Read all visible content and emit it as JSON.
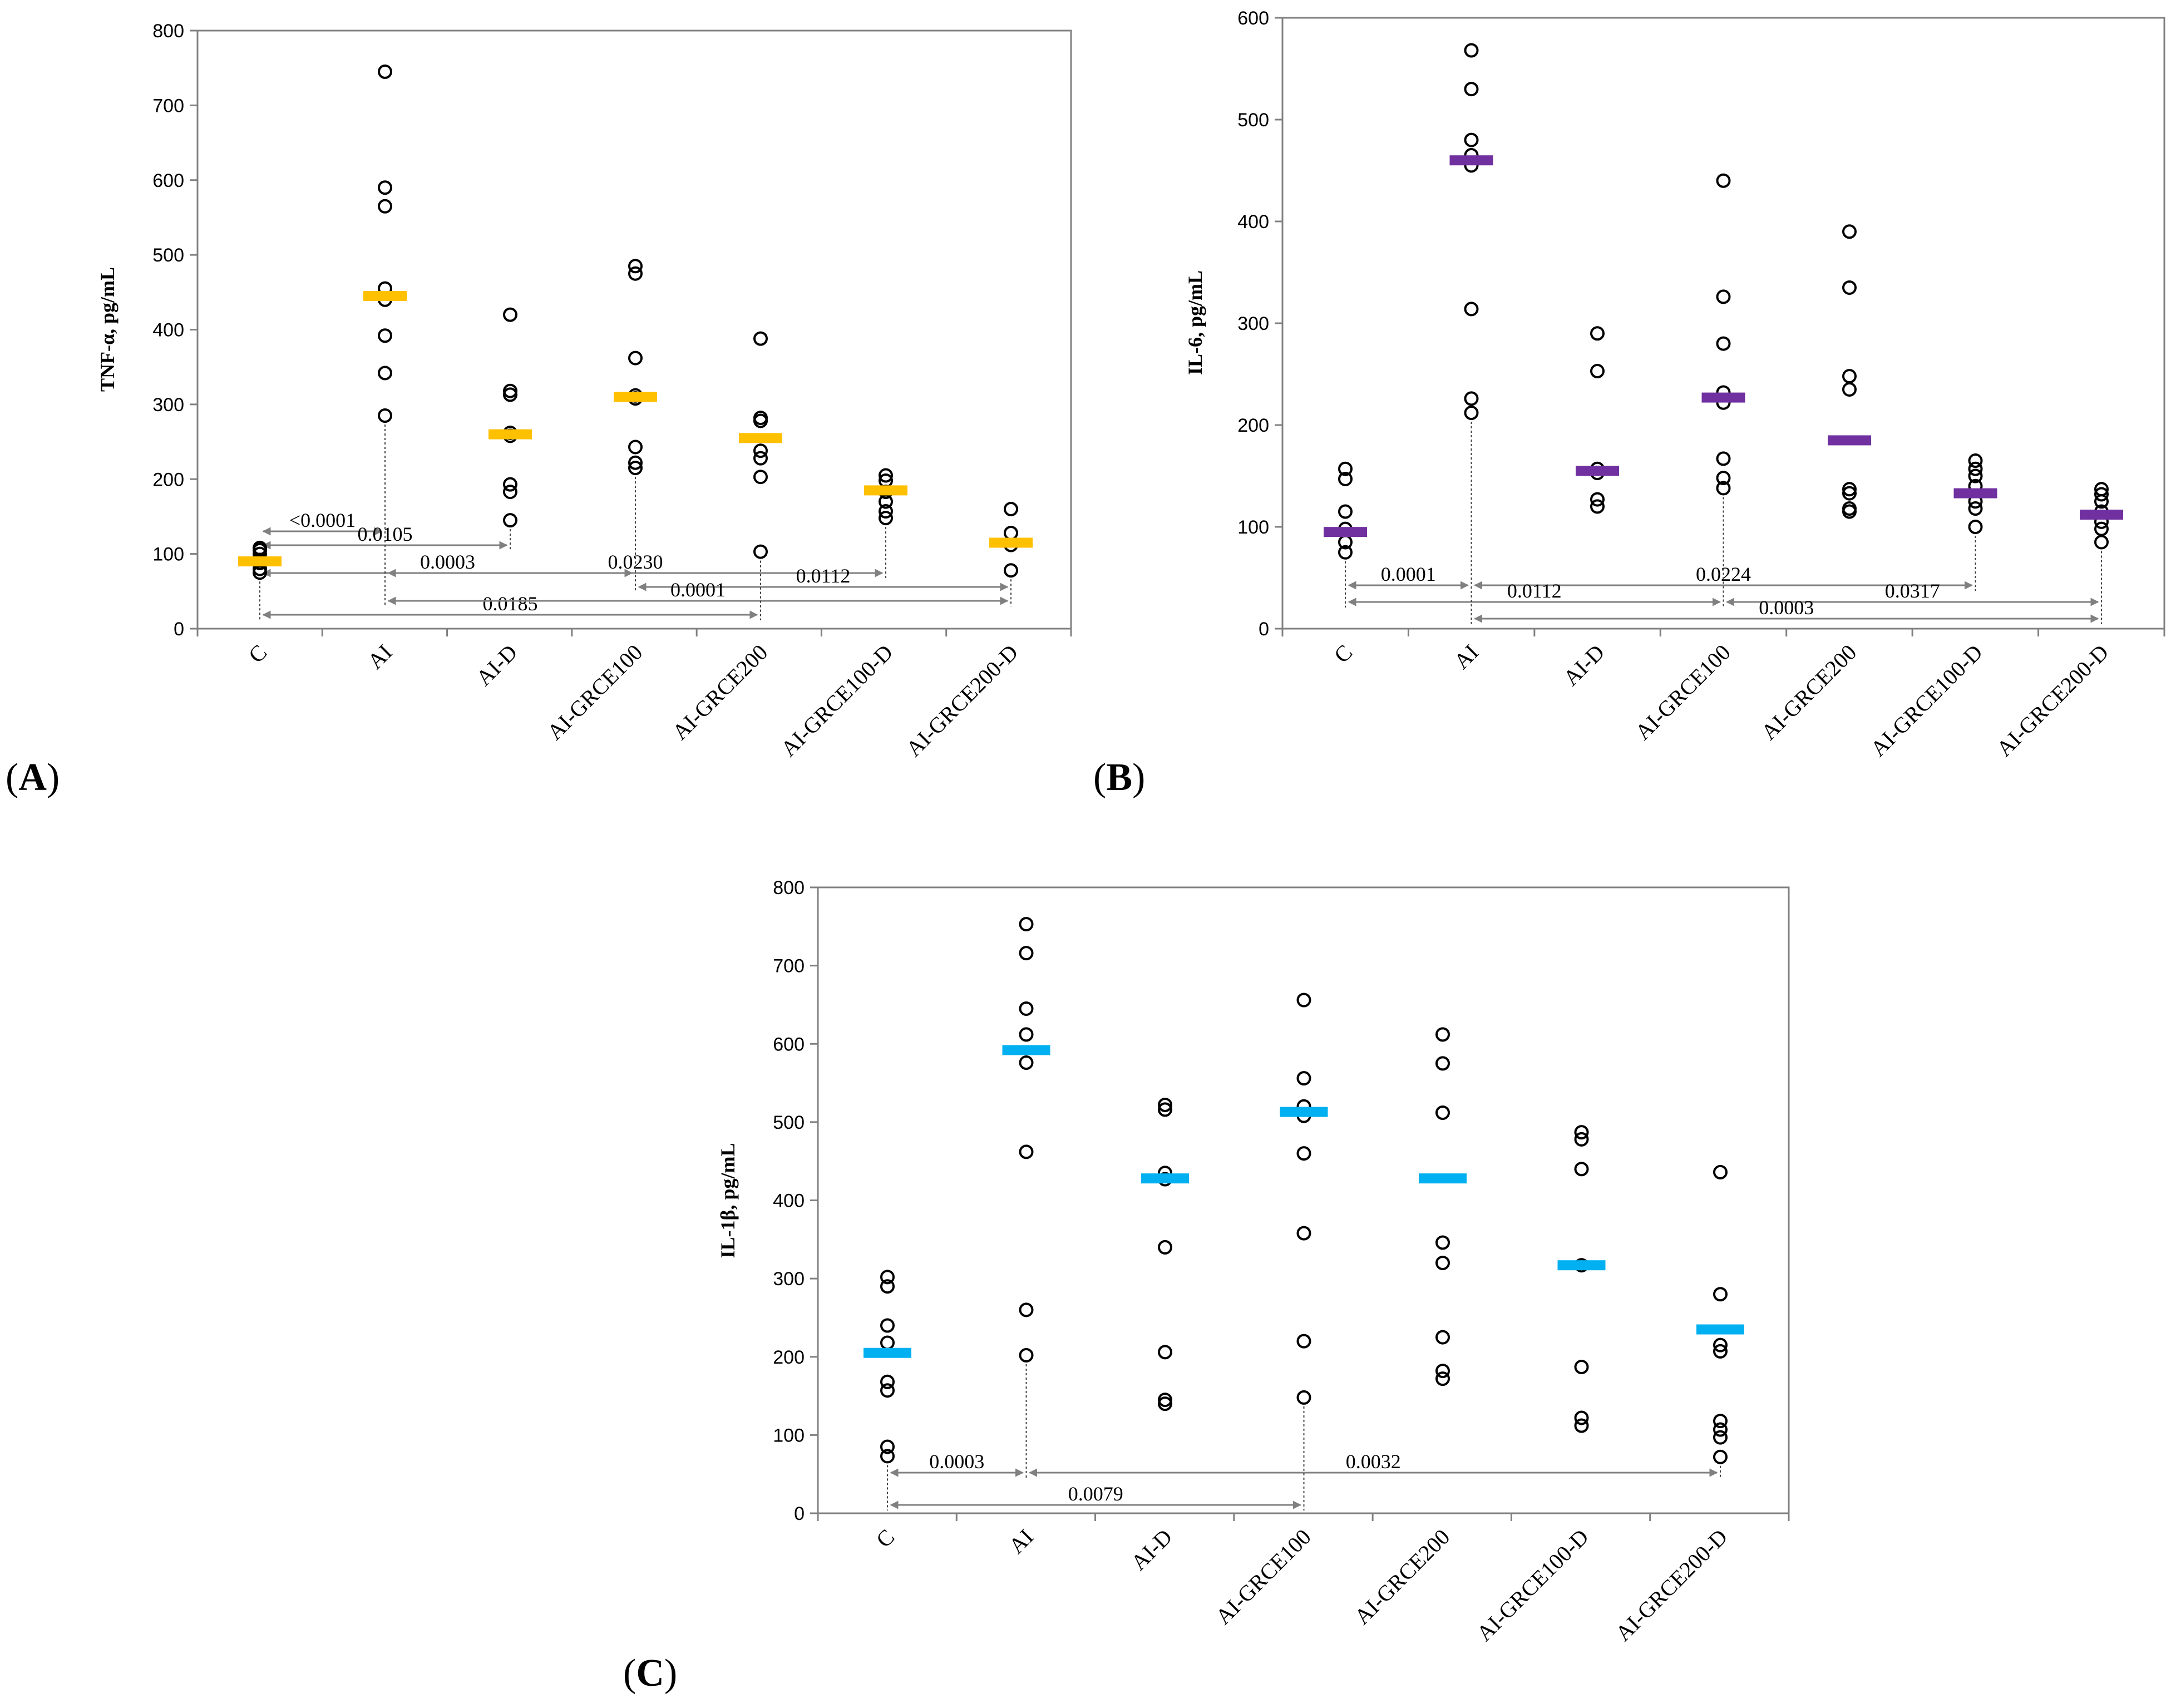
{
  "chart_data": [
    {
      "type": "scatter",
      "panel": "A",
      "title": "",
      "ylabel": "TNF-α, pg/mL",
      "xlabel": "",
      "ylim": [
        0,
        800
      ],
      "yticks": [
        0,
        100,
        200,
        300,
        400,
        500,
        600,
        700,
        800
      ],
      "categories": [
        "C",
        "AI",
        "AI-D",
        "AI-GRCE100",
        "AI-GRCE200",
        "AI-GRCE100-D",
        "AI-GRCE200-D"
      ],
      "mean_color": "#ffc000",
      "points": [
        [
          75,
          80,
          88,
          92,
          100,
          105,
          108
        ],
        [
          285,
          342,
          392,
          440,
          455,
          565,
          590,
          745
        ],
        [
          145,
          183,
          193,
          258,
          262,
          313,
          318,
          420
        ],
        [
          215,
          222,
          243,
          308,
          312,
          362,
          475,
          485
        ],
        [
          103,
          203,
          228,
          238,
          278,
          282,
          388
        ],
        [
          148,
          157,
          170,
          183,
          198,
          205
        ],
        [
          78,
          112,
          128,
          160
        ]
      ],
      "means": [
        90,
        445,
        260,
        310,
        255,
        185,
        115
      ],
      "comparisons": [
        {
          "from": 0,
          "to": 1,
          "label": "<0.0001"
        },
        {
          "from": 0,
          "to": 2,
          "label": "0.0105"
        },
        {
          "from": 0,
          "to": 3,
          "label": "0.0003"
        },
        {
          "from": 1,
          "to": 5,
          "label": "0.0230"
        },
        {
          "from": 3,
          "to": 6,
          "label": "0.0112"
        },
        {
          "from": 0,
          "to": 4,
          "label": "0.0185"
        },
        {
          "from": 1,
          "to": 6,
          "label": "0.0001"
        }
      ]
    },
    {
      "type": "scatter",
      "panel": "B",
      "title": "",
      "ylabel": "IL-6, pg/mL",
      "xlabel": "",
      "ylim": [
        0,
        600
      ],
      "yticks": [
        0,
        100,
        200,
        300,
        400,
        500,
        600
      ],
      "categories": [
        "C",
        "AI",
        "AI-D",
        "AI-GRCE100",
        "AI-GRCE200",
        "AI-GRCE100-D",
        "AI-GRCE200-D"
      ],
      "mean_color": "#7030a0",
      "points": [
        [
          75,
          85,
          98,
          115,
          147,
          157
        ],
        [
          212,
          226,
          314,
          455,
          465,
          480,
          530,
          568
        ],
        [
          120,
          127,
          153,
          157,
          253,
          290
        ],
        [
          138,
          148,
          167,
          222,
          232,
          280,
          326,
          440
        ],
        [
          115,
          118,
          133,
          137,
          235,
          248,
          335,
          390
        ],
        [
          100,
          118,
          125,
          140,
          150,
          157,
          165
        ],
        [
          85,
          98,
          105,
          115,
          125,
          132,
          137
        ]
      ],
      "means": [
        95,
        460,
        155,
        227,
        185,
        133,
        112
      ],
      "comparisons": [
        {
          "from": 0,
          "to": 1,
          "label": "0.0001"
        },
        {
          "from": 1,
          "to": 5,
          "label": "0.0224"
        },
        {
          "from": 0,
          "to": 3,
          "label": "0.0112"
        },
        {
          "from": 3,
          "to": 6,
          "label": "0.0317"
        },
        {
          "from": 1,
          "to": 6,
          "label": "0.0003"
        }
      ]
    },
    {
      "type": "scatter",
      "panel": "C",
      "title": "",
      "ylabel": "IL-1β, pg/mL",
      "xlabel": "",
      "ylim": [
        0,
        800
      ],
      "yticks": [
        0,
        100,
        200,
        300,
        400,
        500,
        600,
        700,
        800
      ],
      "categories": [
        "C",
        "AI",
        "AI-D",
        "AI-GRCE100",
        "AI-GRCE200",
        "AI-GRCE100-D",
        "AI-GRCE200-D"
      ],
      "mean_color": "#00b0f0",
      "points": [
        [
          73,
          85,
          157,
          168,
          218,
          240,
          290,
          302
        ],
        [
          202,
          260,
          462,
          576,
          612,
          645,
          716,
          753
        ],
        [
          140,
          145,
          206,
          340,
          427,
          435,
          516,
          522
        ],
        [
          148,
          220,
          358,
          460,
          508,
          520,
          556,
          656
        ],
        [
          172,
          182,
          225,
          320,
          346,
          512,
          575,
          612
        ],
        [
          112,
          122,
          187,
          317,
          440,
          478,
          487
        ],
        [
          72,
          97,
          107,
          118,
          207,
          215,
          280,
          436
        ]
      ],
      "means": [
        205,
        592,
        428,
        513,
        428,
        317,
        235
      ],
      "comparisons": [
        {
          "from": 0,
          "to": 1,
          "label": "0.0003"
        },
        {
          "from": 1,
          "to": 6,
          "label": "0.0032"
        },
        {
          "from": 0,
          "to": 3,
          "label": "0.0079"
        }
      ]
    }
  ],
  "panel_labels": [
    {
      "open": "(",
      "letter": "A",
      "close": ")"
    },
    {
      "open": "(",
      "letter": "B",
      "close": ")"
    },
    {
      "open": "(",
      "letter": "C",
      "close": ")"
    }
  ],
  "colors": {
    "axis": "#808080",
    "arrow": "#808080",
    "marker": "#000000"
  }
}
